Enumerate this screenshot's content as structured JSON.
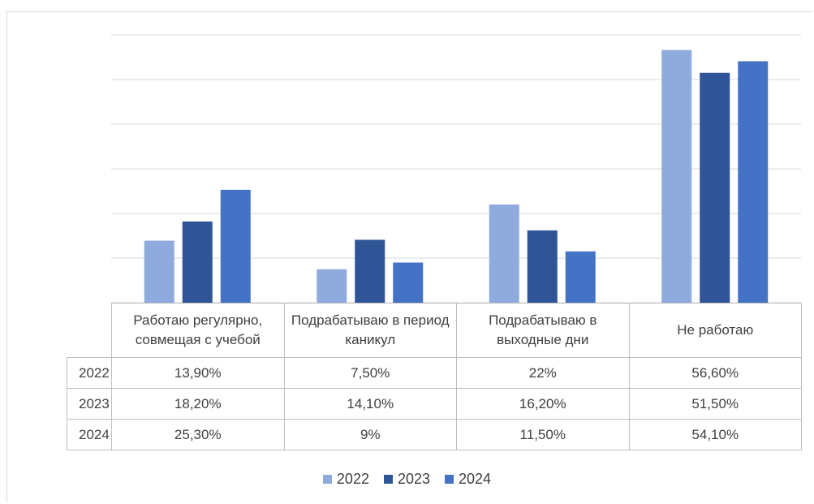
{
  "chart_data": {
    "type": "bar",
    "categories": [
      "Работаю регулярно, совмещая с учебой",
      "Подрабатываю в период каникул",
      "Подрабатываю в выходные дни",
      "Не работаю"
    ],
    "series": [
      {
        "name": "2022",
        "color": "#8faadc",
        "values": [
          13.9,
          7.5,
          22,
          56.6
        ],
        "value_labels": [
          "13,90%",
          "7,50%",
          "22%",
          "56,60%"
        ]
      },
      {
        "name": "2023",
        "color": "#2f5597",
        "values": [
          18.2,
          14.1,
          16.2,
          51.5
        ],
        "value_labels": [
          "18,20%",
          "14,10%",
          "16,20%",
          "51,50%"
        ]
      },
      {
        "name": "2024",
        "color": "#4472c4",
        "values": [
          25.3,
          9,
          11.5,
          54.1
        ],
        "value_labels": [
          "25,30%",
          "9%",
          "11,50%",
          "54,10%"
        ]
      }
    ],
    "ylim": [
      0,
      60
    ],
    "yticks": [
      0,
      10,
      20,
      30,
      40,
      50,
      60
    ],
    "grid": true,
    "legend": "bottom"
  }
}
